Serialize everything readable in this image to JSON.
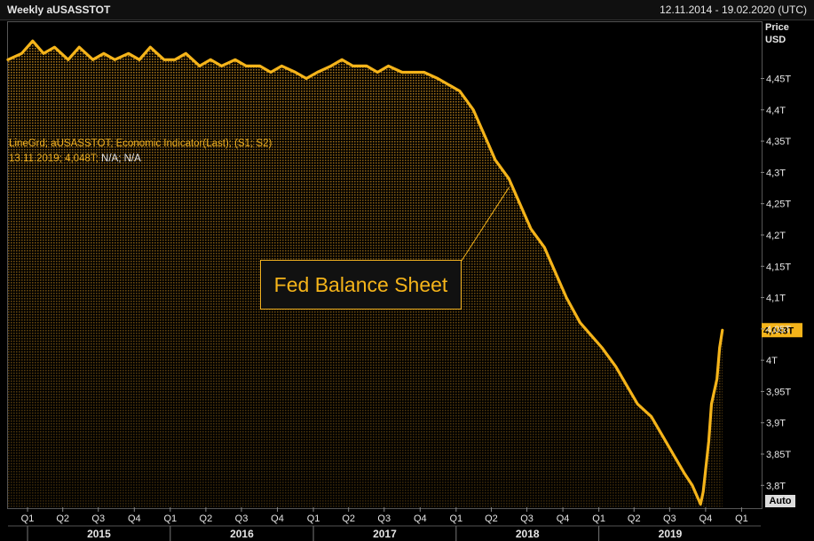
{
  "header": {
    "title": "Weekly aUSASSTOT",
    "date_range": "12.11.2014 - 19.02.2020 (UTC)"
  },
  "axis_header": {
    "price": "Price",
    "currency": "USD"
  },
  "auto_button": "Auto",
  "legend": {
    "line1": "LineGrd; aUSASSTOT; Economic Indicator(Last); (S1; S2)",
    "line2_values": "13.11.2019; 4,048T;",
    "line2_na": "N/A; N/A"
  },
  "annotation": "Fed Balance Sheet",
  "last_value_label": "4,048T",
  "colors": {
    "line": "#f5b41a",
    "fill": "#b07a1a",
    "background": "#000000",
    "text": "#e6e6e6"
  },
  "chart_data": {
    "type": "area",
    "title": "Weekly aUSASSTOT",
    "y_unit": "T USD",
    "ylim": [
      3.765,
      4.54
    ],
    "xlim": [
      "2014-11-12",
      "2020-02-19"
    ],
    "y_ticks": [
      {
        "v": 4.45,
        "label": "4,45T"
      },
      {
        "v": 4.4,
        "label": "4,4T"
      },
      {
        "v": 4.35,
        "label": "4,35T"
      },
      {
        "v": 4.3,
        "label": "4,3T"
      },
      {
        "v": 4.25,
        "label": "4,25T"
      },
      {
        "v": 4.2,
        "label": "4,2T"
      },
      {
        "v": 4.15,
        "label": "4,15T"
      },
      {
        "v": 4.1,
        "label": "4,1T"
      },
      {
        "v": 4.05,
        "label": "4,05T"
      },
      {
        "v": 4.0,
        "label": "4T"
      },
      {
        "v": 3.95,
        "label": "3,95T"
      },
      {
        "v": 3.9,
        "label": "3,9T"
      },
      {
        "v": 3.85,
        "label": "3,85T"
      },
      {
        "v": 3.8,
        "label": "3,8T"
      }
    ],
    "quarter_ticks": [
      {
        "date": "2015-01-01",
        "label": "Q1"
      },
      {
        "date": "2015-04-01",
        "label": "Q2"
      },
      {
        "date": "2015-07-01",
        "label": "Q3"
      },
      {
        "date": "2015-10-01",
        "label": "Q4"
      },
      {
        "date": "2016-01-01",
        "label": "Q1"
      },
      {
        "date": "2016-04-01",
        "label": "Q2"
      },
      {
        "date": "2016-07-01",
        "label": "Q3"
      },
      {
        "date": "2016-10-01",
        "label": "Q4"
      },
      {
        "date": "2017-01-01",
        "label": "Q1"
      },
      {
        "date": "2017-04-01",
        "label": "Q2"
      },
      {
        "date": "2017-07-01",
        "label": "Q3"
      },
      {
        "date": "2017-10-01",
        "label": "Q4"
      },
      {
        "date": "2018-01-01",
        "label": "Q1"
      },
      {
        "date": "2018-04-01",
        "label": "Q2"
      },
      {
        "date": "2018-07-01",
        "label": "Q3"
      },
      {
        "date": "2018-10-01",
        "label": "Q4"
      },
      {
        "date": "2019-01-01",
        "label": "Q1"
      },
      {
        "date": "2019-04-01",
        "label": "Q2"
      },
      {
        "date": "2019-07-01",
        "label": "Q3"
      },
      {
        "date": "2019-10-01",
        "label": "Q4"
      },
      {
        "date": "2020-01-01",
        "label": "Q1"
      }
    ],
    "years": [
      {
        "label": "2015",
        "start": "2015-01-01",
        "end": "2016-01-01"
      },
      {
        "label": "2016",
        "start": "2016-01-01",
        "end": "2017-01-01"
      },
      {
        "label": "2017",
        "start": "2017-01-01",
        "end": "2018-01-01"
      },
      {
        "label": "2018",
        "start": "2018-01-01",
        "end": "2019-01-01"
      },
      {
        "label": "2019",
        "start": "2019-01-01",
        "end": "2020-01-01"
      }
    ],
    "series": [
      {
        "values": [
          [
            "2014-11-12",
            4.48
          ],
          [
            "2014-12-17",
            4.49
          ],
          [
            "2015-01-14",
            4.51
          ],
          [
            "2015-02-11",
            4.49
          ],
          [
            "2015-03-11",
            4.5
          ],
          [
            "2015-04-15",
            4.48
          ],
          [
            "2015-05-13",
            4.5
          ],
          [
            "2015-06-17",
            4.48
          ],
          [
            "2015-07-15",
            4.49
          ],
          [
            "2015-08-12",
            4.48
          ],
          [
            "2015-09-16",
            4.49
          ],
          [
            "2015-10-14",
            4.48
          ],
          [
            "2015-11-11",
            4.5
          ],
          [
            "2015-12-16",
            4.48
          ],
          [
            "2016-01-13",
            4.48
          ],
          [
            "2016-02-10",
            4.49
          ],
          [
            "2016-03-16",
            4.47
          ],
          [
            "2016-04-13",
            4.48
          ],
          [
            "2016-05-11",
            4.47
          ],
          [
            "2016-06-15",
            4.48
          ],
          [
            "2016-07-13",
            4.47
          ],
          [
            "2016-08-17",
            4.47
          ],
          [
            "2016-09-14",
            4.46
          ],
          [
            "2016-10-12",
            4.47
          ],
          [
            "2016-11-16",
            4.46
          ],
          [
            "2016-12-14",
            4.45
          ],
          [
            "2017-01-11",
            4.46
          ],
          [
            "2017-02-15",
            4.47
          ],
          [
            "2017-03-15",
            4.48
          ],
          [
            "2017-04-12",
            4.47
          ],
          [
            "2017-05-17",
            4.47
          ],
          [
            "2017-06-14",
            4.46
          ],
          [
            "2017-07-12",
            4.47
          ],
          [
            "2017-08-16",
            4.46
          ],
          [
            "2017-09-13",
            4.46
          ],
          [
            "2017-10-11",
            4.46
          ],
          [
            "2017-11-15",
            4.45
          ],
          [
            "2017-12-13",
            4.44
          ],
          [
            "2018-01-10",
            4.43
          ],
          [
            "2018-02-14",
            4.4
          ],
          [
            "2018-03-14",
            4.36
          ],
          [
            "2018-04-11",
            4.32
          ],
          [
            "2018-05-16",
            4.29
          ],
          [
            "2018-06-13",
            4.25
          ],
          [
            "2018-07-11",
            4.21
          ],
          [
            "2018-08-15",
            4.18
          ],
          [
            "2018-09-12",
            4.14
          ],
          [
            "2018-10-10",
            4.1
          ],
          [
            "2018-11-14",
            4.06
          ],
          [
            "2018-12-12",
            4.04
          ],
          [
            "2019-01-09",
            4.02
          ],
          [
            "2019-02-13",
            3.99
          ],
          [
            "2019-03-13",
            3.96
          ],
          [
            "2019-04-10",
            3.93
          ],
          [
            "2019-05-15",
            3.91
          ],
          [
            "2019-06-12",
            3.88
          ],
          [
            "2019-07-10",
            3.85
          ],
          [
            "2019-08-07",
            3.82
          ],
          [
            "2019-08-28",
            3.8
          ],
          [
            "2019-09-11",
            3.78
          ],
          [
            "2019-09-18",
            3.77
          ],
          [
            "2019-09-25",
            3.79
          ],
          [
            "2019-10-09",
            3.87
          ],
          [
            "2019-10-16",
            3.93
          ],
          [
            "2019-10-23",
            3.95
          ],
          [
            "2019-10-30",
            3.97
          ],
          [
            "2019-11-06",
            4.02
          ],
          [
            "2019-11-13",
            4.048
          ]
        ]
      }
    ]
  }
}
